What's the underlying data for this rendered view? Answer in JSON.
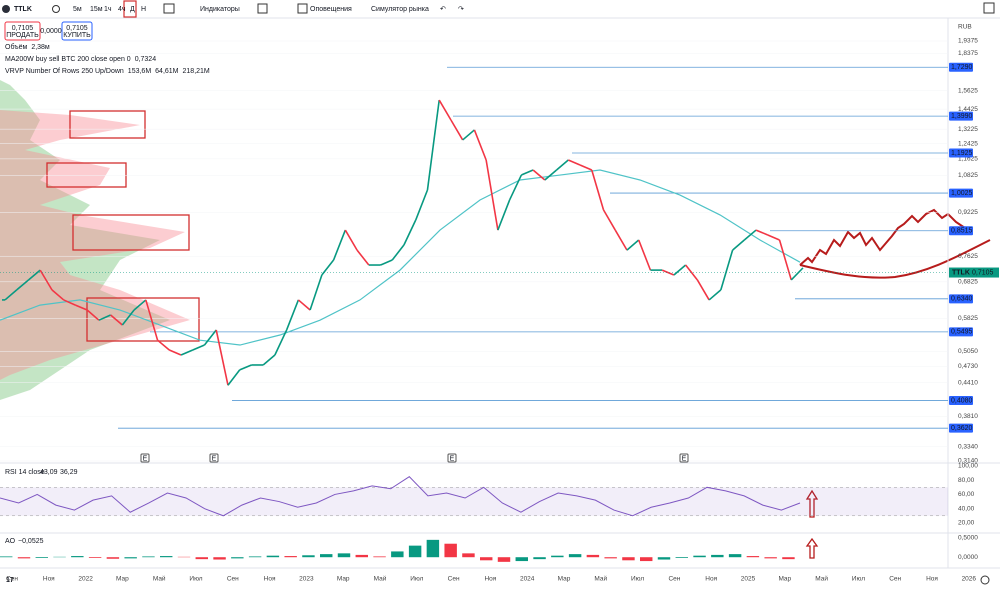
{
  "toolbar": {
    "symbol": "TTLK",
    "intervals": [
      "5м",
      "15м",
      "1ч",
      "4ч",
      "Д",
      "Н"
    ],
    "indicators": "Индикаторы",
    "alerts": "Оповещения",
    "replay": "Симулятор рынка"
  },
  "quote": {
    "sell_price": "0,7105",
    "sell_label": "ПРОДАТЬ",
    "spread": "0,0000",
    "buy_price": "0,7105",
    "buy_label": "КУПИТЬ"
  },
  "legend": [
    {
      "name": "Объём",
      "values": [
        "2,38м"
      ]
    },
    {
      "name": "MA200W buy sell BTC 200 close open 0",
      "values": [
        "0,7324"
      ]
    },
    {
      "name": "VRVP Number Of Rows 250 Up/Down",
      "values": [
        "153,6M",
        "64,61M",
        "218,21M"
      ]
    }
  ],
  "price_chart": {
    "currency": "RUB",
    "log_scale": true,
    "ylim": [
      0.314,
      1.9375
    ],
    "yticks": [
      {
        "value": 1.9375,
        "label": "1,9375"
      },
      {
        "value": 1.8375,
        "label": "1,8375"
      },
      {
        "value": 1.5625,
        "label": "1,5625"
      },
      {
        "value": 1.4425,
        "label": "1,4425"
      },
      {
        "value": 1.3225,
        "label": "1,3225"
      },
      {
        "value": 1.2425,
        "label": "1,2425"
      },
      {
        "value": 1.1625,
        "label": "1,1625"
      },
      {
        "value": 1.0825,
        "label": "1,0825"
      },
      {
        "value": 0.9225,
        "label": "0,9225"
      },
      {
        "value": 0.7625,
        "label": "0,7625"
      },
      {
        "value": 0.6825,
        "label": "0,6825"
      },
      {
        "value": 0.5825,
        "label": "0,5825"
      },
      {
        "value": 0.505,
        "label": "0,5050"
      },
      {
        "value": 0.473,
        "label": "0,4730"
      },
      {
        "value": 0.441,
        "label": "0,4410"
      },
      {
        "value": 0.381,
        "label": "0,3810"
      },
      {
        "value": 0.334,
        "label": "0,3340"
      },
      {
        "value": 0.314,
        "label": "0,3140"
      }
    ],
    "levels": [
      {
        "value": 1.729,
        "label": "1,7290"
      },
      {
        "value": 1.399,
        "label": "1,3990"
      },
      {
        "value": 1.1925,
        "label": "1,1925"
      },
      {
        "value": 1.0025,
        "label": "1,0025"
      },
      {
        "value": 0.8515,
        "label": "0,8515"
      },
      {
        "value": 0.634,
        "label": "0,6340"
      },
      {
        "value": 0.5495,
        "label": "0,5495"
      },
      {
        "value": 0.408,
        "label": "0,4080"
      },
      {
        "value": 0.362,
        "label": "0,3620"
      }
    ],
    "last": {
      "symbol": "TTLK",
      "value": 0.7105,
      "label": "0,7105"
    },
    "price": [
      0.631,
      0.659,
      0.688,
      0.718,
      0.659,
      0.631,
      0.617,
      0.604,
      0.578,
      0.591,
      0.566,
      0.604,
      0.631,
      0.53,
      0.508,
      0.497,
      0.508,
      0.519,
      0.554,
      0.436,
      0.466,
      0.476,
      0.476,
      0.497,
      0.554,
      0.631,
      0.604,
      0.703,
      0.75,
      0.854,
      0.783,
      0.734,
      0.734,
      0.75,
      0.801,
      0.892,
      1.016,
      1.5,
      1.376,
      1.262,
      1.318,
      1.157,
      0.854,
      0.973,
      1.084,
      1.108,
      1.061,
      1.108,
      1.157,
      1.132,
      1.108,
      0.932,
      0.854,
      0.783,
      0.818,
      0.718,
      0.718,
      0.703,
      0.734,
      0.688,
      0.631,
      0.659,
      0.783,
      0.818,
      0.854,
      0.836,
      0.818,
      0.688,
      0.725
    ],
    "ma": [
      0.578,
      0.617,
      0.631,
      0.604,
      0.566,
      0.53,
      0.519,
      0.542,
      0.578,
      0.631,
      0.718,
      0.854,
      0.973,
      1.061,
      1.084,
      1.108,
      1.061,
      0.994,
      0.912,
      0.818,
      0.743
    ]
  },
  "events": [
    "E",
    "E",
    "E",
    "E"
  ],
  "rsi": {
    "title": "RSI 14 close",
    "readings": [
      "43,09",
      "36,29"
    ],
    "ylim": [
      10,
      100
    ],
    "yticks": [
      {
        "value": 100,
        "label": "100,00"
      },
      {
        "value": 80,
        "label": "80,00"
      },
      {
        "value": 60,
        "label": "60,00"
      },
      {
        "value": 40,
        "label": "40,00"
      },
      {
        "value": 20,
        "label": "20,00"
      }
    ],
    "band": [
      30,
      70
    ],
    "values": [
      55,
      48,
      60,
      45,
      38,
      52,
      58,
      35,
      48,
      62,
      55,
      40,
      30,
      45,
      55,
      50,
      42,
      48,
      60,
      65,
      72,
      68,
      85,
      58,
      62,
      55,
      70,
      48,
      35,
      50,
      62,
      58,
      52,
      38,
      30,
      42,
      48,
      55,
      70,
      65,
      58,
      45,
      38,
      48
    ]
  },
  "ao": {
    "title": "AO",
    "reading": "−0,0525",
    "ylim": [
      -0.15,
      0.55
    ],
    "yticks": [
      {
        "value": 0.5,
        "label": "0,5000"
      },
      {
        "value": 0,
        "label": "0,0000"
      }
    ],
    "values": [
      0.02,
      -0.03,
      -0.02,
      0.01,
      0.03,
      -0.02,
      -0.04,
      -0.03,
      0.02,
      0.03,
      0.01,
      -0.05,
      -0.06,
      -0.03,
      0.02,
      0.04,
      0.03,
      0.05,
      0.08,
      0.1,
      0.06,
      0.02,
      0.15,
      0.3,
      0.45,
      0.35,
      0.1,
      -0.08,
      -0.12,
      -0.1,
      -0.05,
      0.04,
      0.08,
      0.06,
      -0.03,
      -0.08,
      -0.1,
      -0.06,
      -0.02,
      0.04,
      0.06,
      0.08,
      0.03,
      -0.03,
      -0.05
    ]
  },
  "time_axis": [
    "Сен",
    "Ноя",
    "2022",
    "Мар",
    "Май",
    "Июл",
    "Сен",
    "Ноя",
    "2023",
    "Мар",
    "Май",
    "Июл",
    "Сен",
    "Ноя",
    "2024",
    "Мар",
    "Май",
    "Июл",
    "Сен",
    "Ноя",
    "2025",
    "Мар",
    "Май",
    "Июл",
    "Сен",
    "Ноя",
    "2026"
  ]
}
